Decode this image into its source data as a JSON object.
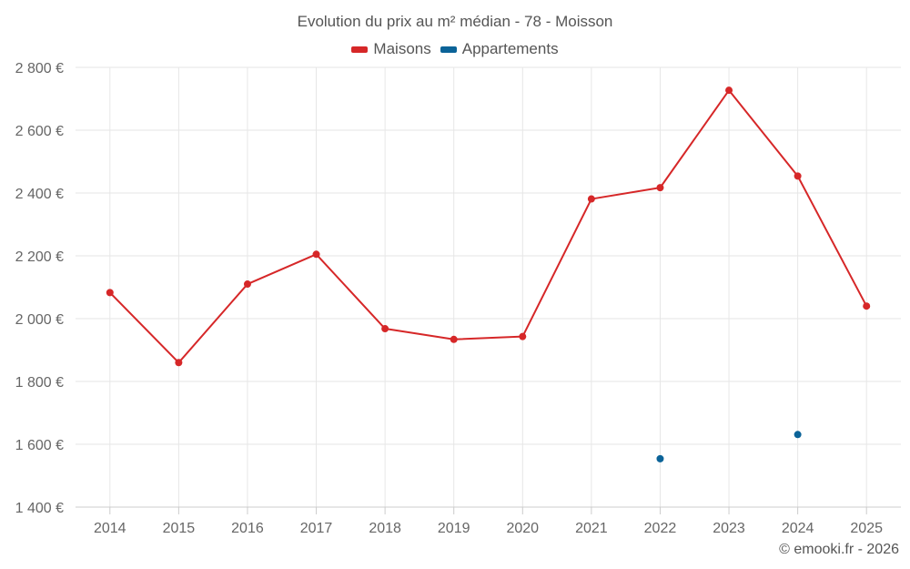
{
  "chart_data": {
    "type": "line",
    "title": "Evolution du prix au m² médian - 78 - Moisson",
    "categories": [
      "2014",
      "2015",
      "2016",
      "2017",
      "2018",
      "2019",
      "2020",
      "2021",
      "2022",
      "2023",
      "2024",
      "2025"
    ],
    "series": [
      {
        "name": "Maisons",
        "color": "#d62728",
        "values": [
          2083,
          1860,
          2110,
          2205,
          1968,
          1934,
          1943,
          2381,
          2417,
          2727,
          2454,
          2040
        ]
      },
      {
        "name": "Appartements",
        "color": "#0b6398",
        "values": [
          null,
          null,
          null,
          null,
          null,
          null,
          null,
          null,
          1554,
          null,
          1631,
          null
        ]
      }
    ],
    "ylim": [
      1400,
      2800
    ],
    "yticks": [
      1400,
      1600,
      1800,
      2000,
      2200,
      2400,
      2600,
      2800
    ],
    "ytick_labels": [
      "1 400 €",
      "1 600 €",
      "1 800 €",
      "2 000 €",
      "2 200 €",
      "2 400 €",
      "2 600 €",
      "2 800 €"
    ],
    "grid": true,
    "legend_position": "top-center"
  },
  "credits": "© emooki.fr - 2026"
}
